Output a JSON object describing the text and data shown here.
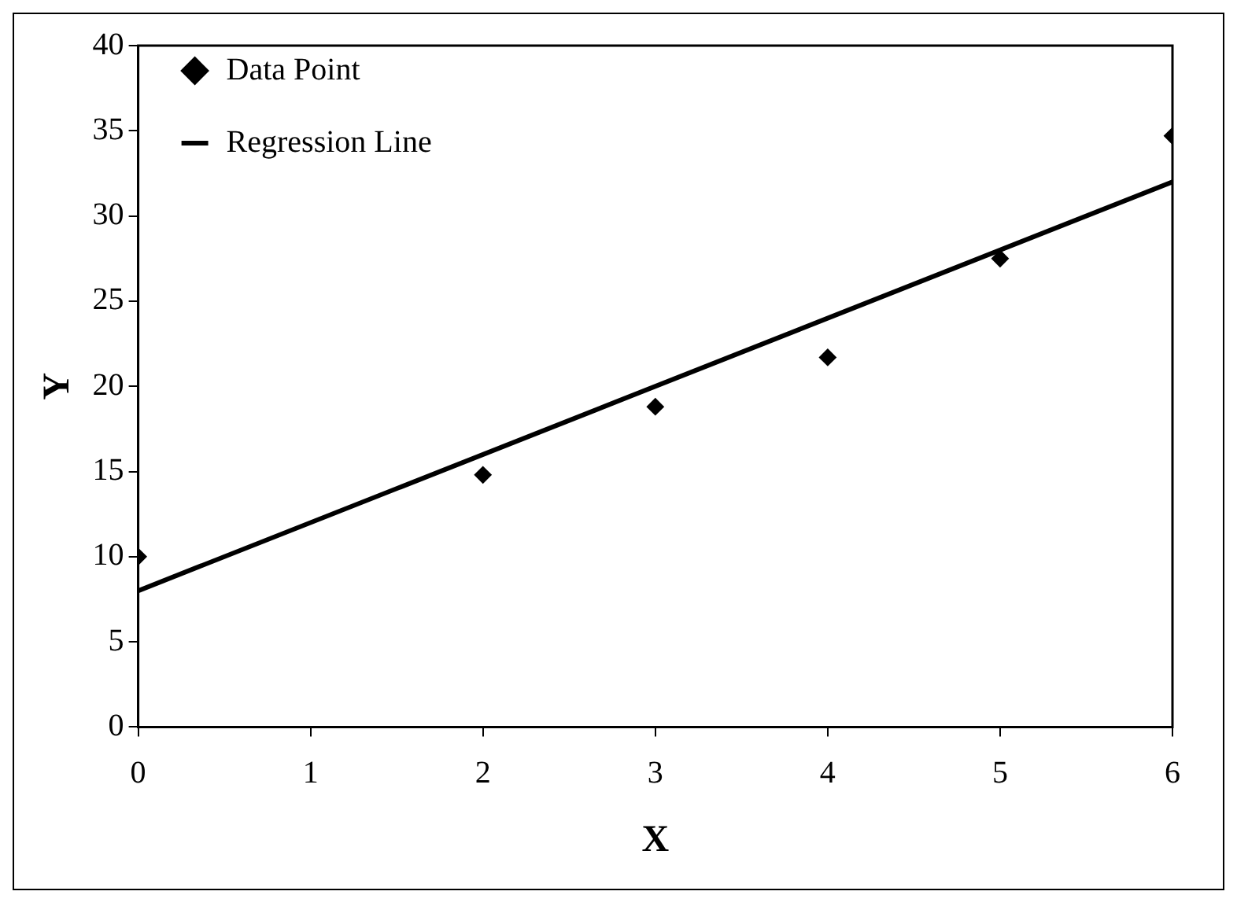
{
  "chart_data": {
    "type": "scatter",
    "xlabel": "X",
    "ylabel": "Y",
    "xlim": [
      0,
      6
    ],
    "xticks": [
      0,
      1,
      2,
      3,
      4,
      5,
      6
    ],
    "ylim": [
      0,
      40
    ],
    "yticks": [
      0,
      5,
      10,
      15,
      20,
      25,
      30,
      35,
      40
    ],
    "grid": false,
    "legend": "top left",
    "series": [
      {
        "name": "Data Point",
        "type": "scatter",
        "color": "#000000",
        "marker": "diamond",
        "x": [
          0,
          2,
          3,
          4,
          5,
          6
        ],
        "values": [
          10,
          14.8,
          18.8,
          21.7,
          27.5,
          34.7
        ]
      },
      {
        "name": "Regression Line",
        "type": "line",
        "color": "#000000",
        "marker": "none",
        "line_style": "solid",
        "x": [
          0,
          6
        ],
        "values": [
          8,
          32
        ]
      }
    ]
  }
}
